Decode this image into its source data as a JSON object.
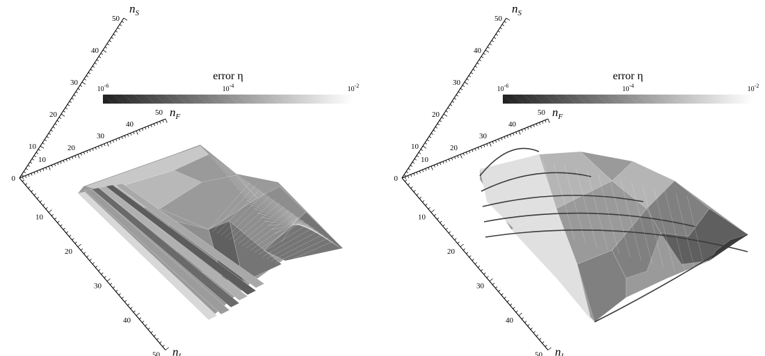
{
  "chart_data": [
    {
      "type": "surface3d",
      "legend": {
        "title": "error  η",
        "tick_labels": [
          {
            "base": "10",
            "exp": "-6",
            "value": 1e-06
          },
          {
            "base": "10",
            "exp": "-4",
            "value": 0.0001
          },
          {
            "base": "10",
            "exp": "-2",
            "value": 0.01
          }
        ],
        "colormap": [
          "#202020",
          "#ffffff"
        ],
        "scale": "log"
      },
      "axes": {
        "nS": {
          "label": "n",
          "sub": "S",
          "ticks": [
            0,
            10,
            20,
            30,
            40,
            50
          ],
          "range": [
            0,
            50
          ]
        },
        "nF": {
          "label": "n",
          "sub": "F",
          "ticks": [
            10,
            20,
            30,
            40,
            50
          ],
          "range": [
            0,
            50
          ]
        },
        "nI": {
          "label": "n",
          "sub": "I",
          "ticks": [
            10,
            20,
            30,
            40,
            50
          ],
          "range": [
            0,
            50
          ]
        }
      },
      "surface": {
        "style": "stepped",
        "mesh": true,
        "gray_levels": [
          "#9a9a9a",
          "#8e8e8e",
          "#b8b8b8",
          "#757575",
          "#c8c8c8",
          "#606060"
        ]
      }
    },
    {
      "type": "surface3d",
      "legend": {
        "title": "error  η",
        "tick_labels": [
          {
            "base": "10",
            "exp": "-6",
            "value": 1e-06
          },
          {
            "base": "10",
            "exp": "-4",
            "value": 0.0001
          },
          {
            "base": "10",
            "exp": "-2",
            "value": 0.01
          }
        ],
        "colormap": [
          "#202020",
          "#ffffff"
        ],
        "scale": "log"
      },
      "axes": {
        "nS": {
          "label": "n",
          "sub": "S",
          "ticks": [
            0,
            10,
            20,
            30,
            40,
            50
          ],
          "range": [
            0,
            50
          ]
        },
        "nF": {
          "label": "n",
          "sub": "F",
          "ticks": [
            10,
            20,
            30,
            40,
            50
          ],
          "range": [
            0,
            50
          ]
        },
        "nI": {
          "label": "n",
          "sub": "I",
          "ticks": [
            10,
            20,
            30,
            40,
            50
          ],
          "range": [
            0,
            50
          ]
        }
      },
      "surface": {
        "style": "smooth",
        "mesh": true,
        "curve_count": 5,
        "gray_levels": [
          "#e0e0e0",
          "#b5b5b5",
          "#9a9a9a",
          "#808080",
          "#5f5f5f",
          "#3a3a3a"
        ]
      }
    }
  ]
}
